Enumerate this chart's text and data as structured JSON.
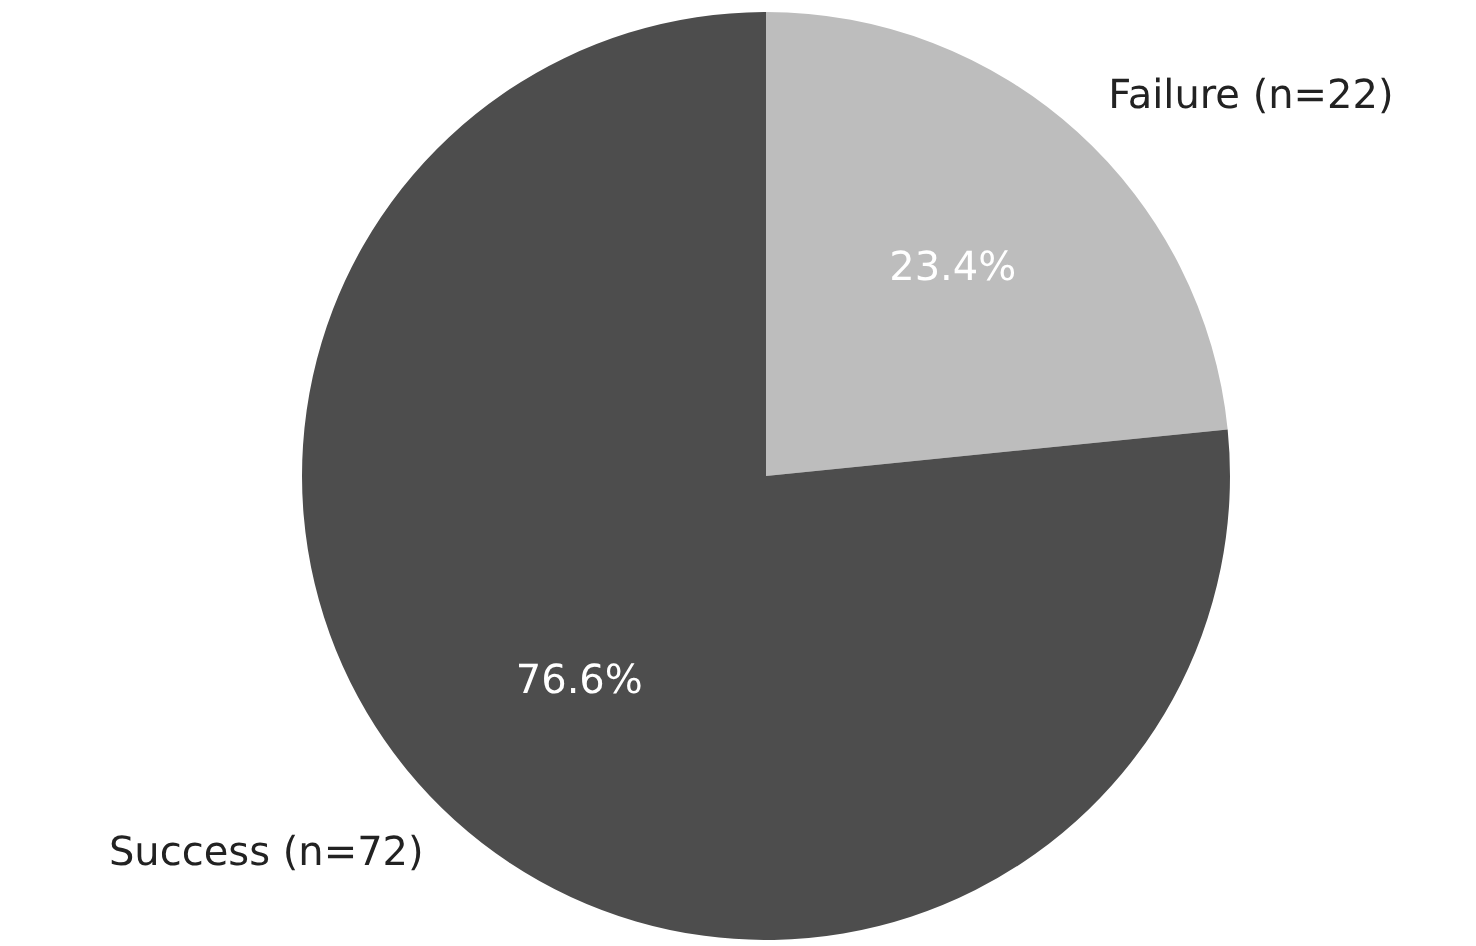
{
  "chart_data": {
    "type": "pie",
    "categories": [
      "Failure (n=22)",
      "Success (n=72)"
    ],
    "values": [
      23.4,
      76.6
    ],
    "colors": [
      "#bdbdbd",
      "#4d4d4d"
    ],
    "value_labels": [
      "23.4%",
      "76.6%"
    ],
    "legend": false
  }
}
